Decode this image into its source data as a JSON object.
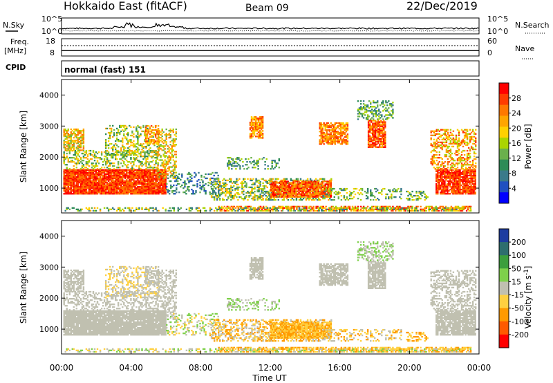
{
  "header": {
    "station": "Hokkaido East (fitACF)",
    "beam": "Beam 09",
    "date": "22/Dec/2019"
  },
  "top_panel": {
    "left_label": "N.Sky",
    "right_label": "N.Search",
    "left_ticks": [
      "10^5",
      "10^0"
    ],
    "right_ticks": [
      "10^5",
      "10^0"
    ]
  },
  "freq_panel": {
    "left_label_1": "Freq.",
    "left_label_2": "[MHz]",
    "left_ticks": [
      "18",
      "8"
    ],
    "right_label": "Nave",
    "right_ticks": [
      "60",
      "0"
    ]
  },
  "cpid_panel": {
    "label": "CPID",
    "text": "normal (fast) 151"
  },
  "chart_data": [
    {
      "type": "heatmap",
      "name_on_chart": "Power [dB]",
      "ylabel": "Slant Range [km]",
      "yticks": [
        "4000",
        "3000",
        "2000",
        "1000"
      ],
      "ylim": [
        200,
        4500
      ],
      "xlim_hours": [
        0,
        24
      ],
      "colorbar": {
        "label": "Power [dB]",
        "ticks": [
          "28",
          "24",
          "20",
          "16",
          "12",
          "8",
          "4"
        ],
        "colors": [
          "#ff0000",
          "#ff3c00",
          "#ff7800",
          "#ffa500",
          "#ffd000",
          "#aad400",
          "#6ab04c",
          "#2e8b57",
          "#3a7a8a",
          "#2050c0",
          "#0000ff"
        ]
      }
    },
    {
      "type": "heatmap",
      "name_on_chart": "Velocity [m s^-1]",
      "ylabel": "Slant Range [km]",
      "yticks": [
        "4000",
        "3000",
        "2000",
        "1000"
      ],
      "ylim": [
        200,
        4500
      ],
      "xlim_hours": [
        0,
        24
      ],
      "colorbar": {
        "label": "Velocity [m s",
        "label_sup": "-1",
        "label_end": "]",
        "ticks": [
          "200",
          "100",
          "50",
          "15",
          "-15",
          "-50",
          "-100",
          "-200"
        ],
        "colors": [
          "#1e3ca0",
          "#2e6e6e",
          "#3c9e3c",
          "#7ed04a",
          "#c0c0b0",
          "#ffd040",
          "#ff9a00",
          "#ff5a00",
          "#ff0000"
        ]
      }
    }
  ],
  "xaxis": {
    "ticks": [
      "00:00",
      "04:00",
      "08:00",
      "12:00",
      "16:00",
      "20:00",
      "00:00"
    ],
    "label": "Time UT"
  }
}
